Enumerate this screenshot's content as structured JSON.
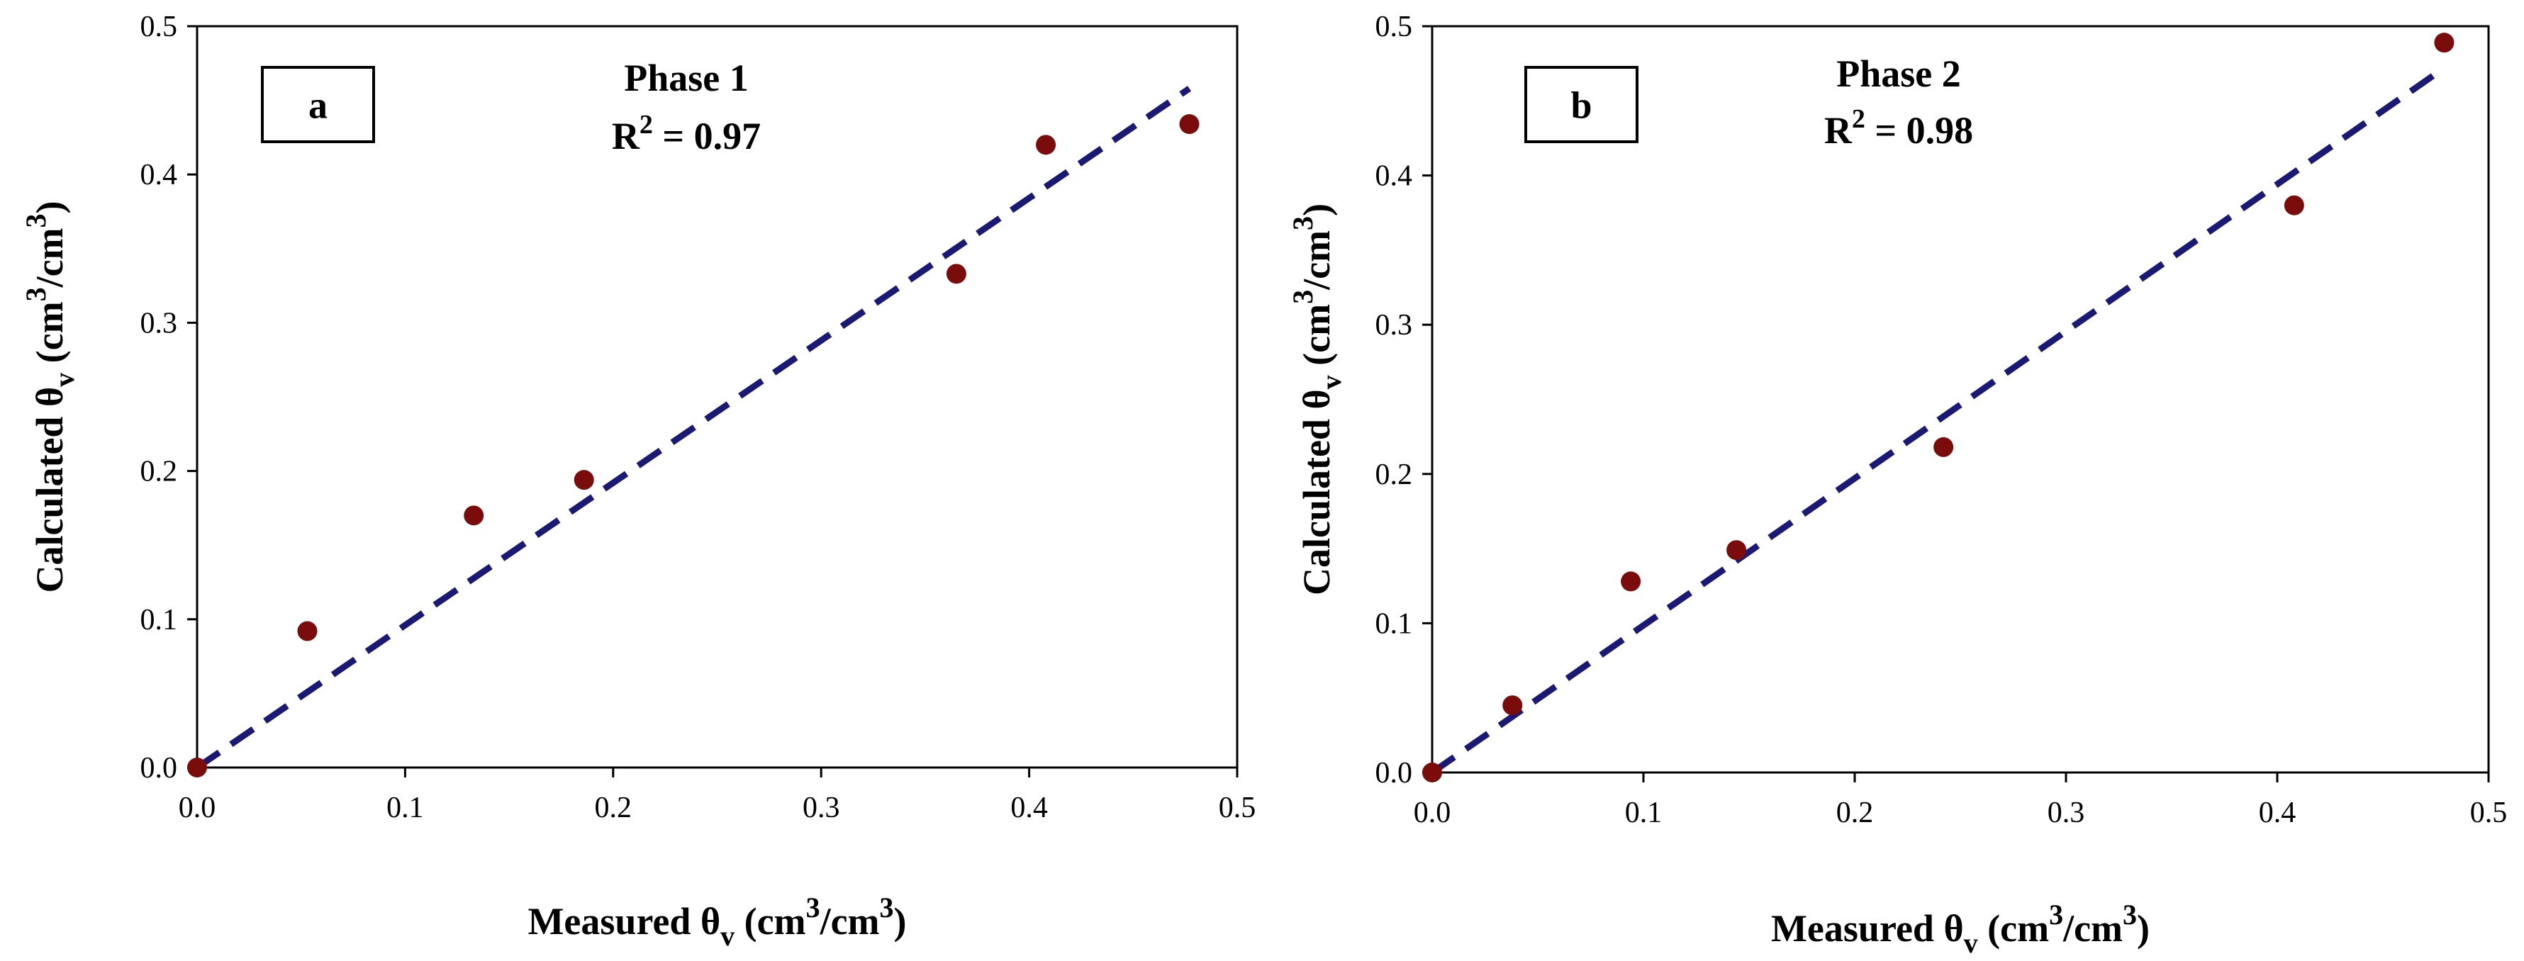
{
  "colors": {
    "points": "#7a0c0c",
    "fit_line": "#1a1a75",
    "axis": "#000000"
  },
  "chart_data": [
    {
      "type": "scatter",
      "panel_label": "a",
      "annotation_title": "Phase 1",
      "r2_prefix": "R",
      "r2_sup": "2",
      "r2_value": " = 0.97",
      "xlabel": {
        "main": "Measured θ",
        "sub": "v",
        "unit_open": " (cm",
        "unit_sup1": "3",
        "unit_mid": "/cm",
        "unit_sup2": "3",
        "unit_close": ")"
      },
      "ylabel": {
        "main": "Calculated θ",
        "sub": "v",
        "unit_open": " (cm",
        "unit_sup1": "3",
        "unit_mid": "/cm",
        "unit_sup2": "3",
        "unit_close": ")"
      },
      "xlim": [
        0,
        0.5
      ],
      "ylim": [
        0,
        0.5
      ],
      "xticks": [
        "0.0",
        "0.1",
        "0.2",
        "0.3",
        "0.4",
        "0.5"
      ],
      "yticks": [
        "0.0",
        "0.1",
        "0.2",
        "0.3",
        "0.4",
        "0.5"
      ],
      "points": [
        {
          "x": 0.0,
          "y": 0.0
        },
        {
          "x": 0.053,
          "y": 0.092
        },
        {
          "x": 0.133,
          "y": 0.17
        },
        {
          "x": 0.186,
          "y": 0.194
        },
        {
          "x": 0.365,
          "y": 0.333
        },
        {
          "x": 0.408,
          "y": 0.42
        },
        {
          "x": 0.477,
          "y": 0.434
        }
      ],
      "fit_line": {
        "x": [
          0.0,
          0.477
        ],
        "y": [
          0.0,
          0.458
        ]
      }
    },
    {
      "type": "scatter",
      "panel_label": "b",
      "annotation_title": "Phase 2",
      "r2_prefix": "R",
      "r2_sup": "2",
      "r2_value": " = 0.98",
      "xlabel": {
        "main": "Measured θ",
        "sub": "v",
        "unit_open": " (cm",
        "unit_sup1": "3",
        "unit_mid": "/cm",
        "unit_sup2": "3",
        "unit_close": ")"
      },
      "ylabel": {
        "main": "Calculated θ",
        "sub": "v",
        "unit_open": " (cm",
        "unit_sup1": "3",
        "unit_mid": "/cm",
        "unit_sup2": "3",
        "unit_close": ")"
      },
      "xlim": [
        0,
        0.5
      ],
      "ylim": [
        0,
        0.5
      ],
      "xticks": [
        "0.0",
        "0.1",
        "0.2",
        "0.3",
        "0.4",
        "0.5"
      ],
      "yticks": [
        "0.0",
        "0.1",
        "0.2",
        "0.3",
        "0.4",
        "0.5"
      ],
      "points": [
        {
          "x": 0.0,
          "y": 0.0
        },
        {
          "x": 0.038,
          "y": 0.045
        },
        {
          "x": 0.094,
          "y": 0.128
        },
        {
          "x": 0.144,
          "y": 0.149
        },
        {
          "x": 0.242,
          "y": 0.218
        },
        {
          "x": 0.408,
          "y": 0.38
        },
        {
          "x": 0.479,
          "y": 0.489
        }
      ],
      "fit_line": {
        "x": [
          0.0,
          0.479
        ],
        "y": [
          0.0,
          0.472
        ]
      }
    }
  ]
}
